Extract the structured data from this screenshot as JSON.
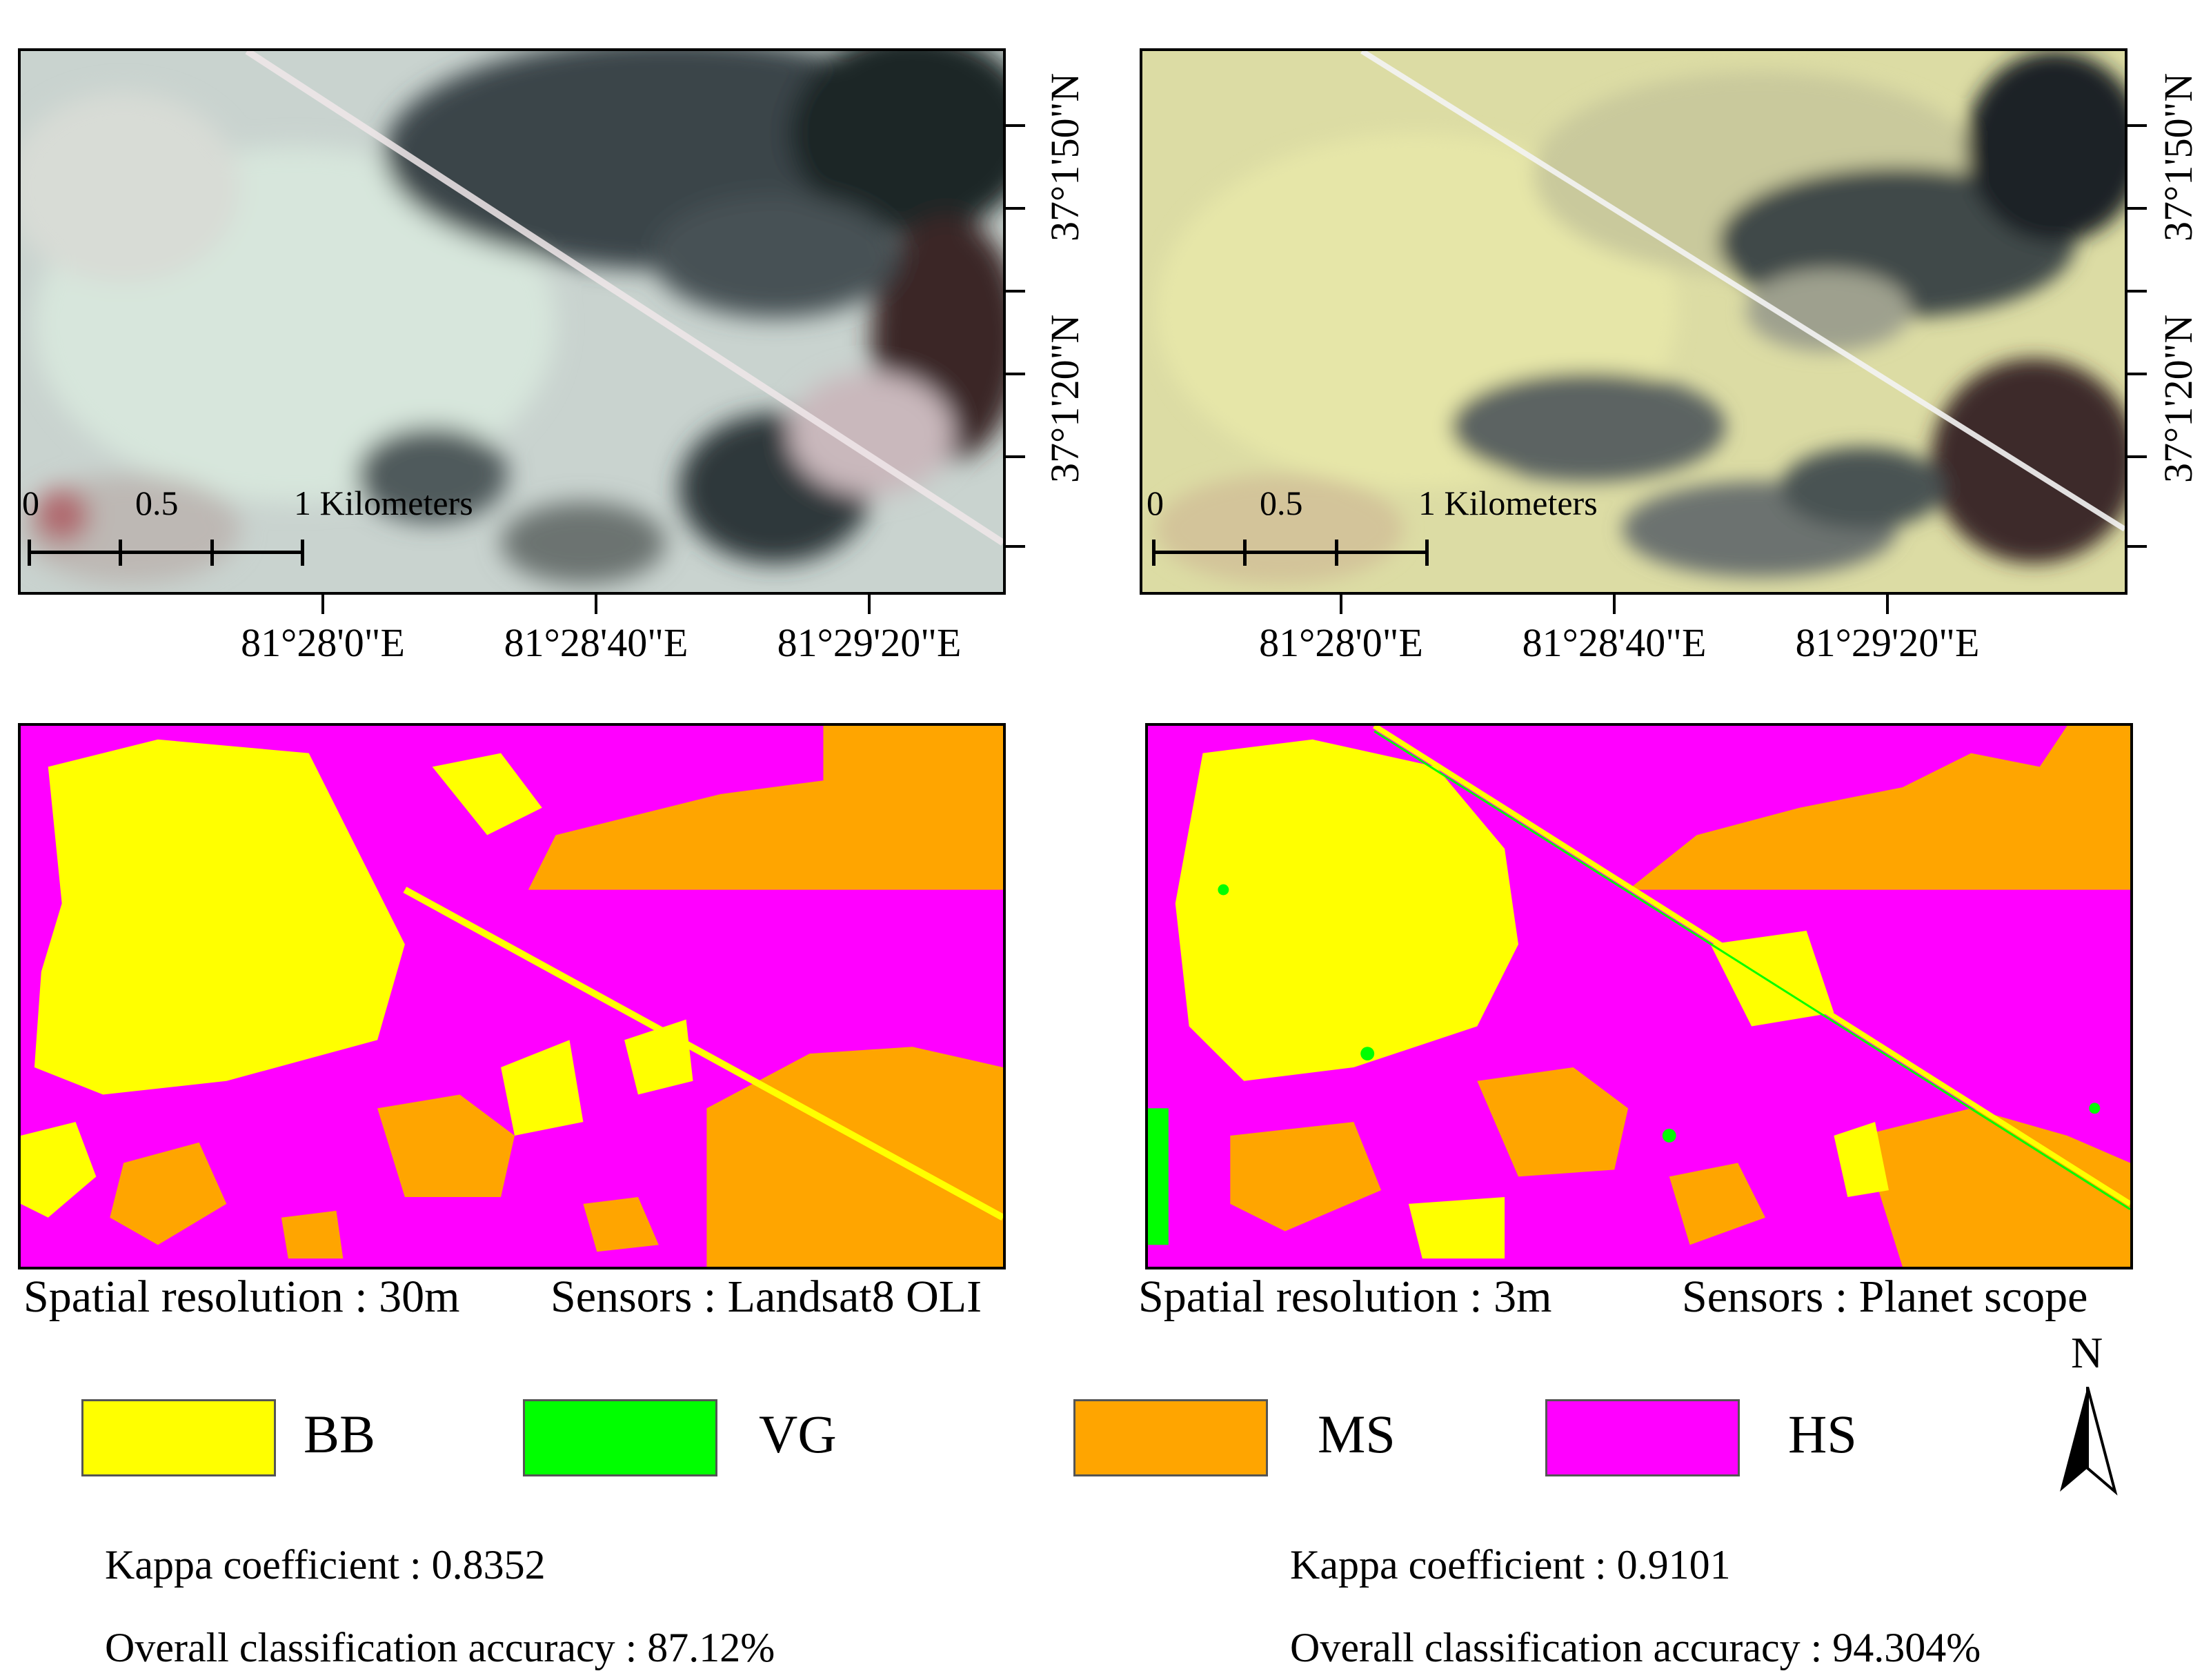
{
  "top_left_map": {
    "sensor_image": "Landsat8 OLI true color composite",
    "lon_labels": [
      "81°28'0\"E",
      "81°28'40\"E",
      "81°29'20\"E"
    ],
    "scale_labels": [
      "0",
      "0.5",
      "1 Kilometers"
    ]
  },
  "top_right_map": {
    "sensor_image": "Planet scope true color composite",
    "lon_labels": [
      "81°28'0\"E",
      "81°28'40\"E",
      "81°29'20\"E"
    ],
    "lat_labels": [
      "37°1'50\"N",
      "37°1'20\"N"
    ],
    "scale_labels": [
      "0",
      "0.5",
      "1 Kilometers"
    ]
  },
  "captions": {
    "left_resolution": "Spatial resolution : 30m",
    "left_sensor": "Sensors : Landsat8 OLI",
    "right_resolution": "Spatial resolution : 3m",
    "right_sensor": "Sensors : Planet scope"
  },
  "legend": [
    {
      "label": "BB",
      "color": "#ffff00"
    },
    {
      "label": "VG",
      "color": "#00ff00"
    },
    {
      "label": "MS",
      "color": "#ffa500"
    },
    {
      "label": "HS",
      "color": "#ff00ff"
    }
  ],
  "north_arrow": {
    "label": "N"
  },
  "stats": {
    "left": {
      "kappa": "Kappa coefficient : 0.8352",
      "accuracy": "Overall classification accuracy : 87.12%"
    },
    "right": {
      "kappa": "Kappa coefficient : 0.9101",
      "accuracy": "Overall classification accuracy : 94.304%"
    }
  }
}
